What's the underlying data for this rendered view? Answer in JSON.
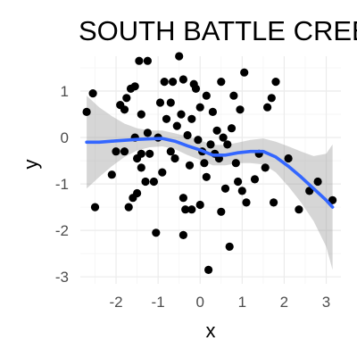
{
  "chart_data": {
    "type": "scatter",
    "title": "SOUTH BATTLE CREEK",
    "xlabel": "x",
    "ylabel": "y",
    "xlim": [
      -2.85,
      3.35
    ],
    "ylim": [
      -3.15,
      1.75
    ],
    "x_ticks": [
      -2,
      -1,
      0,
      1,
      2,
      3
    ],
    "y_ticks": [
      -3,
      -2,
      -1,
      0,
      1
    ],
    "x_tick_labels": [
      "-2",
      "-1",
      "0",
      "1",
      "2",
      "3"
    ],
    "y_tick_labels": [
      "-3",
      "-2",
      "-1",
      "0",
      "1"
    ],
    "grid": true,
    "legend": "none",
    "colors": {
      "points": "#000000",
      "smooth_line": "#3366ff",
      "ribbon": "#999999",
      "grid_major": "#ebebeb",
      "grid_minor": "#f5f5f5"
    },
    "points": [
      {
        "x": -2.7,
        "y": 0.55
      },
      {
        "x": -2.55,
        "y": 0.95
      },
      {
        "x": -2.5,
        "y": -1.5
      },
      {
        "x": -2.1,
        "y": -0.8
      },
      {
        "x": -2.0,
        "y": -0.3
      },
      {
        "x": -1.9,
        "y": 0.7
      },
      {
        "x": -1.8,
        "y": 0.6
      },
      {
        "x": -1.8,
        "y": -0.3
      },
      {
        "x": -1.75,
        "y": 0.85
      },
      {
        "x": -1.7,
        "y": -1.5
      },
      {
        "x": -1.65,
        "y": 1.05
      },
      {
        "x": -1.6,
        "y": -1.3
      },
      {
        "x": -1.55,
        "y": 1.1
      },
      {
        "x": -1.55,
        "y": 0.0
      },
      {
        "x": -1.5,
        "y": -0.45
      },
      {
        "x": -1.5,
        "y": -1.2
      },
      {
        "x": -1.45,
        "y": 1.65
      },
      {
        "x": -1.4,
        "y": -0.65
      },
      {
        "x": -1.4,
        "y": -0.35
      },
      {
        "x": -1.4,
        "y": 0.5
      },
      {
        "x": -1.3,
        "y": -0.95
      },
      {
        "x": -1.25,
        "y": 1.65
      },
      {
        "x": -1.25,
        "y": 0.1
      },
      {
        "x": -1.2,
        "y": -0.35
      },
      {
        "x": -1.1,
        "y": -0.95
      },
      {
        "x": -1.05,
        "y": -2.05
      },
      {
        "x": -1.0,
        "y": 0.0
      },
      {
        "x": -0.95,
        "y": 0.75
      },
      {
        "x": -0.9,
        "y": -0.75
      },
      {
        "x": -0.85,
        "y": 1.2
      },
      {
        "x": -0.8,
        "y": 0.4
      },
      {
        "x": -0.7,
        "y": -0.3
      },
      {
        "x": -0.7,
        "y": 0.75
      },
      {
        "x": -0.65,
        "y": 1.2
      },
      {
        "x": -0.6,
        "y": -0.45
      },
      {
        "x": -0.55,
        "y": 0.25
      },
      {
        "x": -0.5,
        "y": 1.75
      },
      {
        "x": -0.45,
        "y": 0.5
      },
      {
        "x": -0.4,
        "y": 1.25
      },
      {
        "x": -0.4,
        "y": -1.3
      },
      {
        "x": -0.4,
        "y": -2.1
      },
      {
        "x": -0.35,
        "y": -1.55
      },
      {
        "x": -0.3,
        "y": 0.05
      },
      {
        "x": -0.25,
        "y": -0.6
      },
      {
        "x": -0.2,
        "y": 0.4
      },
      {
        "x": -0.2,
        "y": -1.55
      },
      {
        "x": -0.15,
        "y": 1.15
      },
      {
        "x": -0.1,
        "y": 1.05
      },
      {
        "x": -0.05,
        "y": -0.05
      },
      {
        "x": 0.0,
        "y": -1.45
      },
      {
        "x": 0.0,
        "y": 0.65
      },
      {
        "x": 0.05,
        "y": -0.3
      },
      {
        "x": 0.1,
        "y": -0.55
      },
      {
        "x": 0.15,
        "y": 0.9
      },
      {
        "x": 0.15,
        "y": -0.85
      },
      {
        "x": 0.2,
        "y": -2.85
      },
      {
        "x": 0.25,
        "y": -0.15
      },
      {
        "x": 0.3,
        "y": 0.55
      },
      {
        "x": 0.35,
        "y": -0.35
      },
      {
        "x": 0.4,
        "y": 0.15
      },
      {
        "x": 0.45,
        "y": -0.45
      },
      {
        "x": 0.5,
        "y": 1.2
      },
      {
        "x": 0.5,
        "y": -1.6
      },
      {
        "x": 0.55,
        "y": 0.0
      },
      {
        "x": 0.6,
        "y": -1.1
      },
      {
        "x": 0.65,
        "y": -0.15
      },
      {
        "x": 0.7,
        "y": -2.35
      },
      {
        "x": 0.75,
        "y": 0.2
      },
      {
        "x": 0.8,
        "y": 0.9
      },
      {
        "x": 0.85,
        "y": -0.55
      },
      {
        "x": 0.9,
        "y": -0.95
      },
      {
        "x": 0.95,
        "y": 0.6
      },
      {
        "x": 1.0,
        "y": -1.15
      },
      {
        "x": 1.05,
        "y": 1.4
      },
      {
        "x": 1.1,
        "y": -1.4
      },
      {
        "x": 1.3,
        "y": -0.9
      },
      {
        "x": 1.4,
        "y": -0.35
      },
      {
        "x": 1.55,
        "y": -0.65
      },
      {
        "x": 1.6,
        "y": 0.65
      },
      {
        "x": 1.7,
        "y": 0.85
      },
      {
        "x": 1.75,
        "y": -1.4
      },
      {
        "x": 1.8,
        "y": 1.2
      },
      {
        "x": 2.1,
        "y": -0.45
      },
      {
        "x": 2.35,
        "y": -1.55
      },
      {
        "x": 2.6,
        "y": -1.15
      },
      {
        "x": 2.8,
        "y": -0.95
      },
      {
        "x": 3.15,
        "y": -1.35
      }
    ],
    "smooth": {
      "x": [
        -2.7,
        -2.4,
        -2.1,
        -1.8,
        -1.5,
        -1.2,
        -0.9,
        -0.6,
        -0.3,
        0.0,
        0.3,
        0.6,
        0.9,
        1.2,
        1.5,
        1.8,
        2.1,
        2.4,
        2.7,
        3.0,
        3.15
      ],
      "y": [
        -0.1,
        -0.1,
        -0.08,
        -0.06,
        -0.04,
        -0.03,
        -0.02,
        -0.08,
        -0.18,
        -0.27,
        -0.38,
        -0.38,
        -0.33,
        -0.3,
        -0.3,
        -0.42,
        -0.62,
        -0.85,
        -1.1,
        -1.35,
        -1.5
      ],
      "lower": [
        -1.1,
        -0.85,
        -0.62,
        -0.42,
        -0.28,
        -0.21,
        -0.19,
        -0.25,
        -0.38,
        -0.48,
        -0.6,
        -0.6,
        -0.55,
        -0.55,
        -0.58,
        -0.75,
        -1.05,
        -1.4,
        -1.8,
        -2.35,
        -2.85
      ],
      "upper": [
        0.9,
        0.65,
        0.46,
        0.3,
        0.2,
        0.15,
        0.15,
        0.09,
        0.02,
        -0.06,
        -0.16,
        -0.16,
        -0.11,
        -0.05,
        -0.02,
        -0.09,
        -0.19,
        -0.3,
        -0.4,
        -0.35,
        -0.15
      ]
    }
  }
}
